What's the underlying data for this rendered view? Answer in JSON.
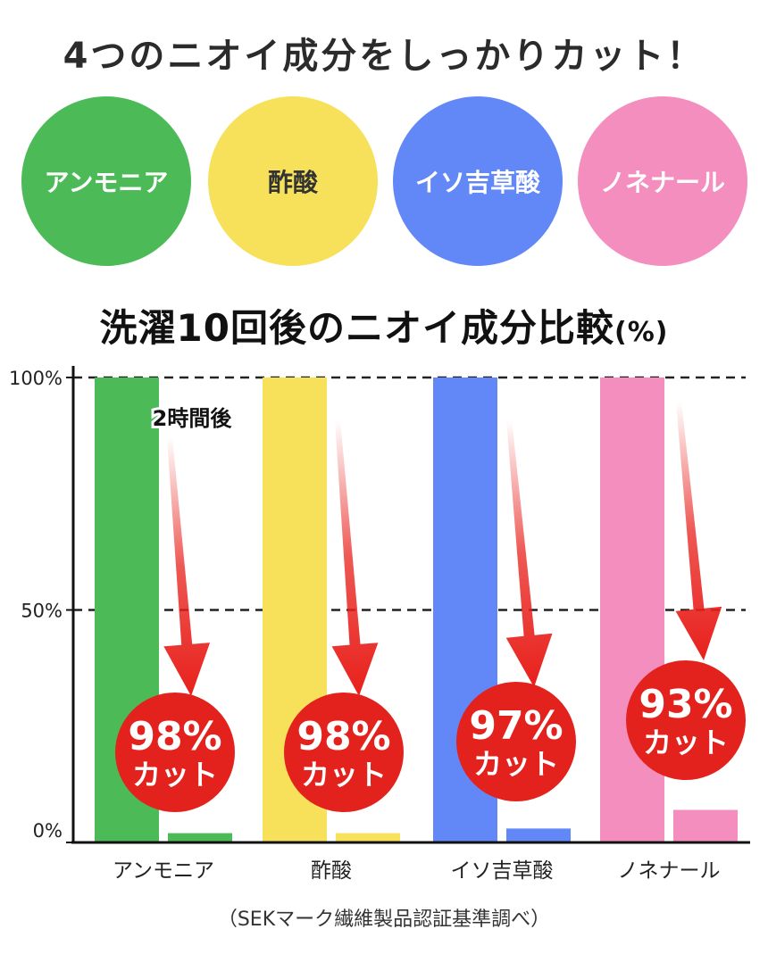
{
  "headline": "4つのニオイ成分をしっかりカット！",
  "components": [
    {
      "label": "アンモニア",
      "color": "#4cbb57",
      "text_color": "#ffffff"
    },
    {
      "label": "酢酸",
      "color": "#f7e15a",
      "text_color": "#333333"
    },
    {
      "label": "イソ吉草酸",
      "color": "#6288f7",
      "text_color": "#ffffff"
    },
    {
      "label": "ノネナール",
      "color": "#f48ebe",
      "text_color": "#ffffff"
    }
  ],
  "chart_data": {
    "type": "bar",
    "title": "洗濯10回後のニオイ成分比較",
    "title_unit": "(%)",
    "categories": [
      "アンモニア",
      "酢酸",
      "イソ吉草酸",
      "ノネナール"
    ],
    "series": [
      {
        "name": "洗濯10回後",
        "values": [
          100,
          100,
          100,
          100
        ]
      },
      {
        "name": "2時間後",
        "values": [
          2,
          2,
          3,
          7
        ]
      }
    ],
    "colors": [
      "#4cbb57",
      "#f7e15a",
      "#6288f7",
      "#f48ebe"
    ],
    "yticks": [
      {
        "value": 100,
        "label": "100%"
      },
      {
        "value": 50,
        "label": "50%"
      },
      {
        "value": 0,
        "label": "0%"
      }
    ],
    "ylim": [
      0,
      100
    ],
    "annotation_label": "2時間後",
    "badges": [
      {
        "percent": "98%",
        "text": "カット"
      },
      {
        "percent": "98%",
        "text": "カット"
      },
      {
        "percent": "97%",
        "text": "カット"
      },
      {
        "percent": "93%",
        "text": "カット"
      }
    ],
    "badge_color": "#e3221d",
    "arrow_color": "#e8201b"
  },
  "footnote": "（SEKマーク繊維製品認証基準調べ）"
}
